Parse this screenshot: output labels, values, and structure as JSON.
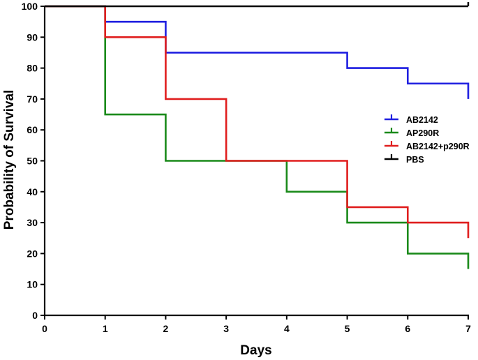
{
  "chart_data": {
    "type": "line",
    "step": true,
    "title": "",
    "xlabel": "Days",
    "ylabel": "Probability of Survival",
    "xlim": [
      0,
      7
    ],
    "ylim": [
      0,
      100
    ],
    "x_ticks": [
      "0",
      "1",
      "2",
      "3",
      "4",
      "5",
      "6",
      "7"
    ],
    "y_ticks": [
      "0",
      "10",
      "20",
      "30",
      "40",
      "50",
      "60",
      "70",
      "80",
      "90",
      "100"
    ],
    "grid": false,
    "legend_position": "right",
    "series": [
      {
        "name": "AB2142",
        "color": "#1f1fe0",
        "points": [
          [
            0,
            100
          ],
          [
            1,
            95
          ],
          [
            2,
            85
          ],
          [
            5,
            80
          ],
          [
            6,
            75
          ],
          [
            7,
            70
          ]
        ]
      },
      {
        "name": "AP290R",
        "color": "#1a8a1a",
        "points": [
          [
            0,
            100
          ],
          [
            1,
            65
          ],
          [
            2,
            50
          ],
          [
            4,
            40
          ],
          [
            5,
            30
          ],
          [
            6,
            20
          ],
          [
            7,
            15
          ]
        ]
      },
      {
        "name": "AB2142+p290R",
        "color": "#e01e1e",
        "points": [
          [
            0,
            100
          ],
          [
            1,
            90
          ],
          [
            2,
            70
          ],
          [
            3,
            50
          ],
          [
            5,
            35
          ],
          [
            6,
            30
          ],
          [
            7,
            25
          ]
        ]
      },
      {
        "name": "PBS",
        "color": "#000000",
        "points": [
          [
            0,
            100
          ],
          [
            7,
            100
          ]
        ]
      }
    ]
  }
}
